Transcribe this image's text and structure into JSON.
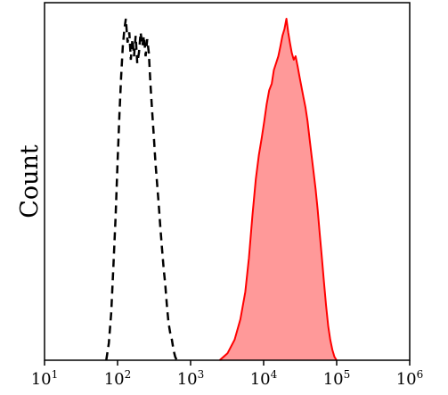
{
  "chart_data": {
    "type": "area",
    "title": "",
    "xlabel": "",
    "ylabel": "Count",
    "x_scale": "log",
    "xlim": [
      10,
      1000000
    ],
    "ylim": [
      0,
      1.0
    ],
    "grid": false,
    "legend": "none",
    "x_ticks": [
      {
        "value": 10,
        "base": "10",
        "exp": "1"
      },
      {
        "value": 100,
        "base": "10",
        "exp": "2"
      },
      {
        "value": 1000,
        "base": "10",
        "exp": "3"
      },
      {
        "value": 10000,
        "base": "10",
        "exp": "4"
      },
      {
        "value": 100000,
        "base": "10",
        "exp": "5"
      },
      {
        "value": 1000000,
        "base": "10",
        "exp": "6"
      }
    ],
    "series": [
      {
        "style": "dashed-outline",
        "color": "#000000",
        "points": [
          [
            70,
            0.0
          ],
          [
            76,
            0.05
          ],
          [
            82,
            0.14
          ],
          [
            88,
            0.28
          ],
          [
            94,
            0.42
          ],
          [
            100,
            0.58
          ],
          [
            106,
            0.72
          ],
          [
            112,
            0.83
          ],
          [
            118,
            0.92
          ],
          [
            124,
            0.97
          ],
          [
            130,
            1.0
          ],
          [
            137,
            0.93
          ],
          [
            145,
            0.96
          ],
          [
            152,
            0.88
          ],
          [
            160,
            0.94
          ],
          [
            168,
            0.89
          ],
          [
            177,
            0.95
          ],
          [
            186,
            0.87
          ],
          [
            196,
            0.9
          ],
          [
            207,
            0.96
          ],
          [
            218,
            0.92
          ],
          [
            230,
            0.95
          ],
          [
            242,
            0.89
          ],
          [
            255,
            0.94
          ],
          [
            268,
            0.9
          ],
          [
            282,
            0.81
          ],
          [
            297,
            0.73
          ],
          [
            313,
            0.66
          ],
          [
            330,
            0.58
          ],
          [
            347,
            0.52
          ],
          [
            365,
            0.46
          ],
          [
            385,
            0.39
          ],
          [
            405,
            0.33
          ],
          [
            427,
            0.27
          ],
          [
            450,
            0.22
          ],
          [
            474,
            0.16
          ],
          [
            499,
            0.11
          ],
          [
            526,
            0.08
          ],
          [
            554,
            0.06
          ],
          [
            584,
            0.03
          ],
          [
            615,
            0.01
          ],
          [
            648,
            0.0
          ]
        ]
      },
      {
        "style": "filled",
        "color": "#ff0000",
        "fill": "#ff9999",
        "points": [
          [
            2500,
            0.0
          ],
          [
            3200,
            0.02
          ],
          [
            4000,
            0.06
          ],
          [
            4800,
            0.12
          ],
          [
            5600,
            0.2
          ],
          [
            6300,
            0.3
          ],
          [
            7000,
            0.42
          ],
          [
            7800,
            0.53
          ],
          [
            8600,
            0.6
          ],
          [
            9400,
            0.65
          ],
          [
            10200,
            0.7
          ],
          [
            11000,
            0.75
          ],
          [
            11900,
            0.79
          ],
          [
            12900,
            0.81
          ],
          [
            13800,
            0.85
          ],
          [
            14800,
            0.87
          ],
          [
            15900,
            0.89
          ],
          [
            17000,
            0.92
          ],
          [
            18100,
            0.95
          ],
          [
            19300,
            0.97
          ],
          [
            20500,
            1.0
          ],
          [
            21700,
            0.96
          ],
          [
            22900,
            0.93
          ],
          [
            24300,
            0.9
          ],
          [
            25800,
            0.88
          ],
          [
            27400,
            0.89
          ],
          [
            29200,
            0.86
          ],
          [
            31000,
            0.83
          ],
          [
            33000,
            0.8
          ],
          [
            35100,
            0.77
          ],
          [
            37400,
            0.74
          ],
          [
            39900,
            0.7
          ],
          [
            42500,
            0.65
          ],
          [
            45300,
            0.6
          ],
          [
            48300,
            0.55
          ],
          [
            51500,
            0.5
          ],
          [
            55000,
            0.44
          ],
          [
            58700,
            0.37
          ],
          [
            62700,
            0.3
          ],
          [
            67000,
            0.23
          ],
          [
            71600,
            0.16
          ],
          [
            76500,
            0.1
          ],
          [
            81700,
            0.06
          ],
          [
            87300,
            0.03
          ],
          [
            93300,
            0.01
          ],
          [
            99800,
            0.0
          ]
        ]
      }
    ]
  }
}
